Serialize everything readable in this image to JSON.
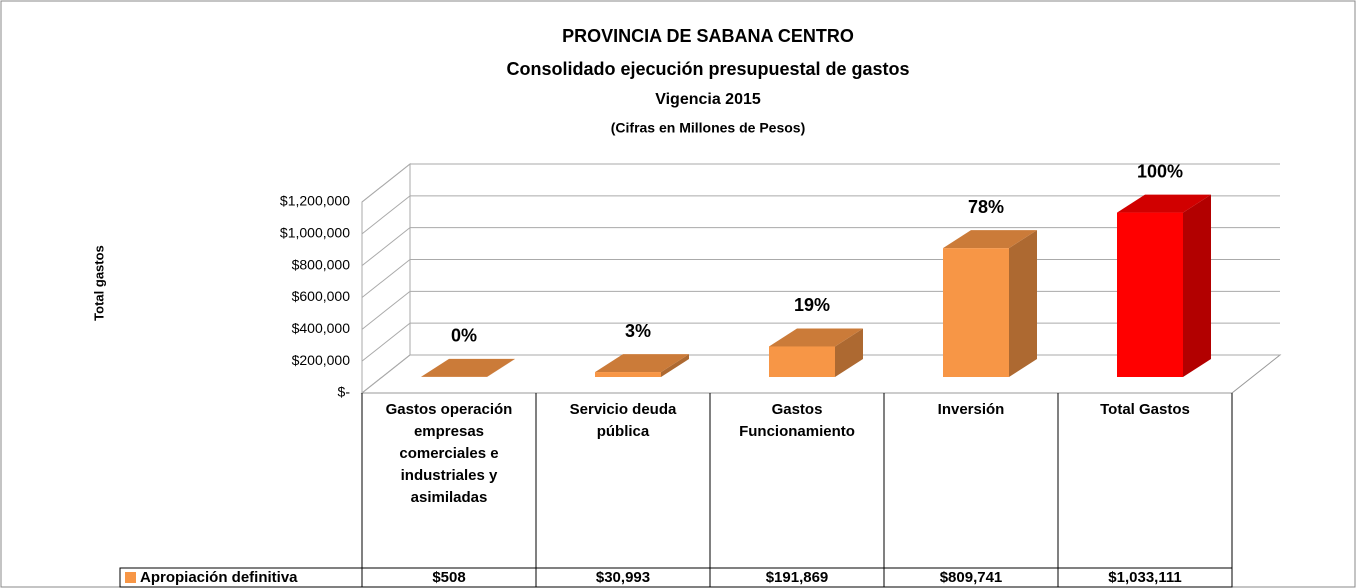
{
  "chart_data": {
    "type": "bar3d",
    "title": "PROVINCIA DE SABANA CENTRO",
    "subtitle": [
      "Consolidado  ejecución presupuestal de gastos",
      "Vigencia 2015",
      "(Cifras en Millones de Pesos)"
    ],
    "y_label": "Total gastos",
    "categories": [
      "Gastos operación empresas comerciales e industriales y asimiladas",
      "Servicio deuda pública",
      "Gastos Funcionamiento",
      "Inversión",
      "Total Gastos"
    ],
    "series": [
      {
        "name": "Apropiación definitiva",
        "color": "#f79646",
        "colors": [
          "#f79646",
          "#f79646",
          "#f79646",
          "#f79646",
          "#ff0000"
        ],
        "values": [
          508,
          30993,
          191869,
          809741,
          1033111
        ],
        "value_labels": [
          "$508",
          "$30,993",
          "$191,869",
          "$809,741",
          "$1,033,111"
        ],
        "share_labels": [
          "0%",
          "3%",
          "19%",
          "78%",
          "100%"
        ]
      }
    ],
    "ylim": [
      0,
      1200000
    ],
    "yticks": [
      {
        "value": 0,
        "label": "$-"
      },
      {
        "value": 200000,
        "label": "$200,000"
      },
      {
        "value": 400000,
        "label": "$400,000"
      },
      {
        "value": 600000,
        "label": "$600,000"
      },
      {
        "value": 800000,
        "label": "$800,000"
      },
      {
        "value": 1000000,
        "label": "$1,000,000"
      },
      {
        "value": 1200000,
        "label": "$1,200,000"
      }
    ],
    "grid": true
  }
}
